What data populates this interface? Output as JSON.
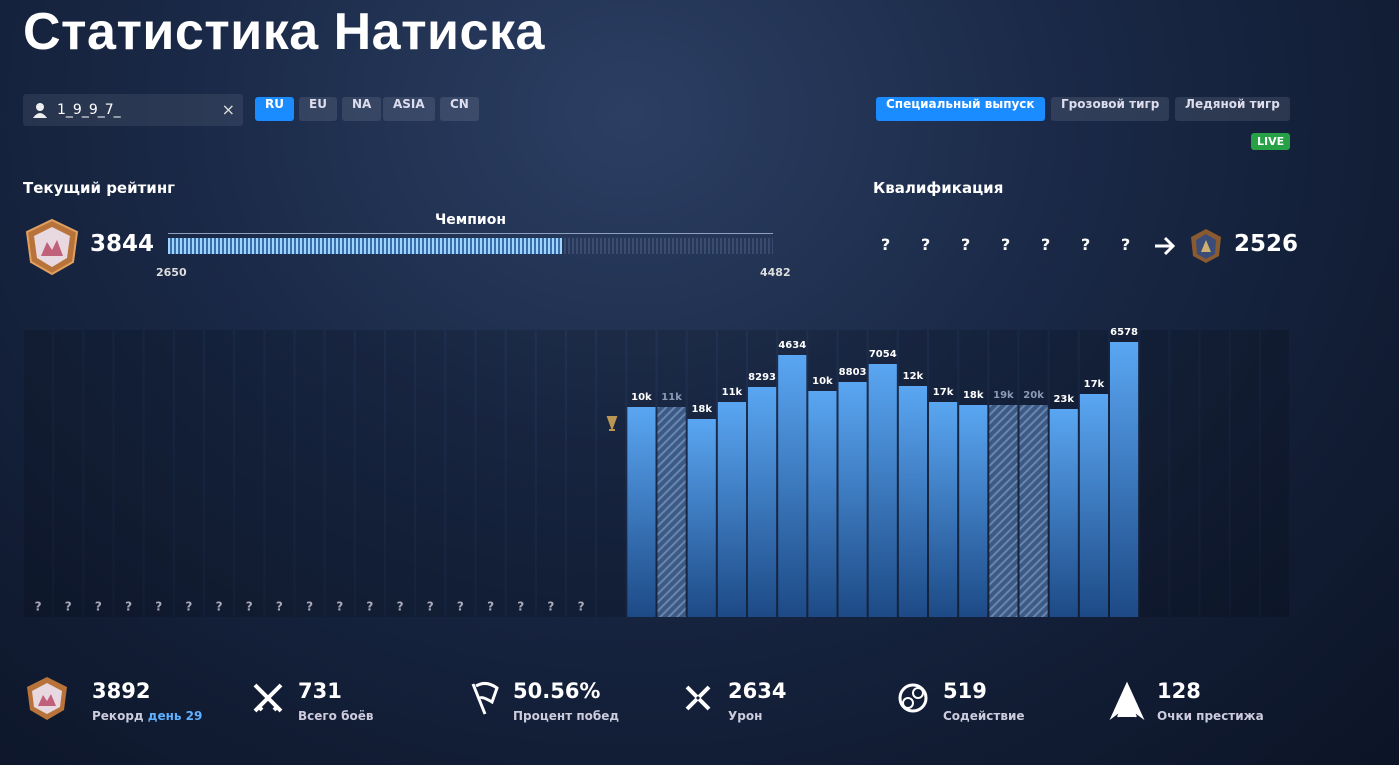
{
  "title": "Статистика Натиска",
  "search": {
    "value": "1_9_9_7_"
  },
  "regions": {
    "items": [
      "RU",
      "EU",
      "NA",
      "ASIA",
      "CN"
    ],
    "active": 0
  },
  "seasons": {
    "items": [
      "Специальный выпуск",
      "Грозовой тигр",
      "Ледяной тигр"
    ],
    "active": 0
  },
  "live_badge": "LIVE",
  "current_rating": {
    "label": "Текущий рейтинг",
    "value": 3844,
    "league": "Чемпион",
    "range_min": 2650,
    "range_max": 4482
  },
  "qualification": {
    "label": "Квалификация",
    "slots": [
      "?",
      "?",
      "?",
      "?",
      "?",
      "?",
      "?"
    ],
    "result": 2526
  },
  "chart_data": {
    "type": "bar",
    "color": "#5aa6f2",
    "ylim": [
      0,
      4200
    ],
    "values": [
      null,
      null,
      null,
      null,
      null,
      null,
      null,
      null,
      null,
      null,
      null,
      null,
      null,
      null,
      null,
      null,
      null,
      null,
      null,
      null,
      2940,
      2940,
      2772,
      3010,
      3220,
      3668,
      3164,
      3290,
      3542,
      3234,
      3010,
      2968,
      2968,
      2968,
      2912,
      3122,
      3850,
      null,
      null,
      null,
      null,
      null
    ],
    "value_labels": [
      "?",
      "?",
      "?",
      "?",
      "?",
      "?",
      "?",
      "?",
      "?",
      "?",
      "?",
      "?",
      "?",
      "?",
      "?",
      "?",
      "?",
      "?",
      "?",
      null,
      "10k",
      "11k",
      "18k",
      "11k",
      "8293",
      "4634",
      "10k",
      "8803",
      "7054",
      "12k",
      "17k",
      "18k",
      "19k",
      "20k",
      "23k",
      "17k",
      "6578",
      null,
      null,
      null,
      null,
      null
    ],
    "hatched": [
      false,
      false,
      false,
      false,
      false,
      false,
      false,
      false,
      false,
      false,
      false,
      false,
      false,
      false,
      false,
      false,
      false,
      false,
      false,
      false,
      false,
      true,
      false,
      false,
      false,
      false,
      false,
      false,
      false,
      false,
      false,
      false,
      true,
      true,
      false,
      false,
      false,
      false,
      false,
      false,
      false,
      false
    ]
  },
  "stats": [
    {
      "value": "3892",
      "label": "Рекорд",
      "detail": "день 29"
    },
    {
      "value": "731",
      "label": "Всего боёв"
    },
    {
      "value": "50.56%",
      "label": "Процент побед"
    },
    {
      "value": "2634",
      "label": "Урон"
    },
    {
      "value": "519",
      "label": "Содействие"
    },
    {
      "value": "128",
      "label": "Очки престижа"
    }
  ]
}
